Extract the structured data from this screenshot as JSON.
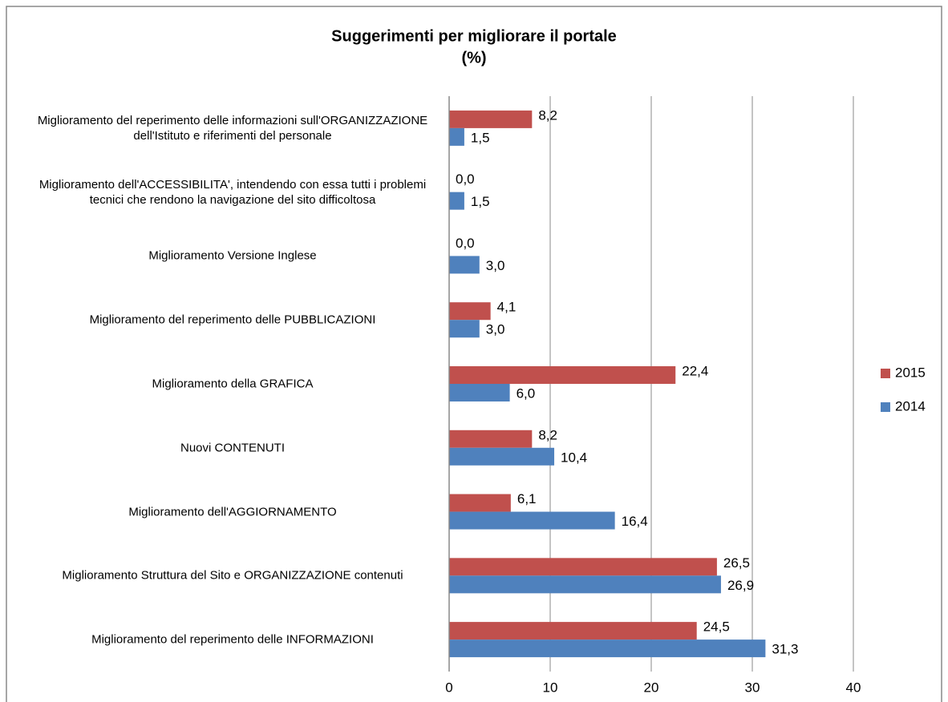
{
  "chart_data": {
    "type": "hbar",
    "title": "Suggerimenti per migliorare il portale",
    "subtitle": "(%)",
    "categories": [
      "Miglioramento del reperimento delle informazioni sull'ORGANIZZAZIONE dell'Istituto e riferimenti del personale",
      "Miglioramento dell'ACCESSIBILITA', intendendo con essa tutti i problemi tecnici che rendono la navigazione del sito difficoltosa",
      "Miglioramento Versione Inglese",
      "Miglioramento del reperimento delle PUBBLICAZIONI",
      "Miglioramento della GRAFICA",
      "Nuovi CONTENUTI",
      "Miglioramento dell'AGGIORNAMENTO",
      "Miglioramento Struttura del Sito e ORGANIZZAZIONE contenuti",
      "Miglioramento del reperimento delle INFORMAZIONI"
    ],
    "series": [
      {
        "name": "2015",
        "color": "#c0504d",
        "values": [
          8.2,
          0,
          0,
          4.1,
          22.4,
          8.2,
          6.1,
          26.5,
          24.5
        ],
        "value_labels": [
          "8,2",
          "0,0",
          "0,0",
          "4,1",
          "22,4",
          "8,2",
          "6,1",
          "26,5",
          "24,5"
        ]
      },
      {
        "name": "2014",
        "color": "#4f81bd",
        "values": [
          1.5,
          1.5,
          3.0,
          3.0,
          6.0,
          10.4,
          16.4,
          26.9,
          31.3
        ],
        "value_labels": [
          "1,5",
          "1,5",
          "3,0",
          "3,0",
          "6,0",
          "10,4",
          "16,4",
          "26,9",
          "31,3"
        ]
      }
    ],
    "xlim": [
      0,
      40
    ],
    "xticks": [
      0,
      10,
      20,
      30,
      40
    ],
    "grid": true,
    "legend": "right"
  }
}
